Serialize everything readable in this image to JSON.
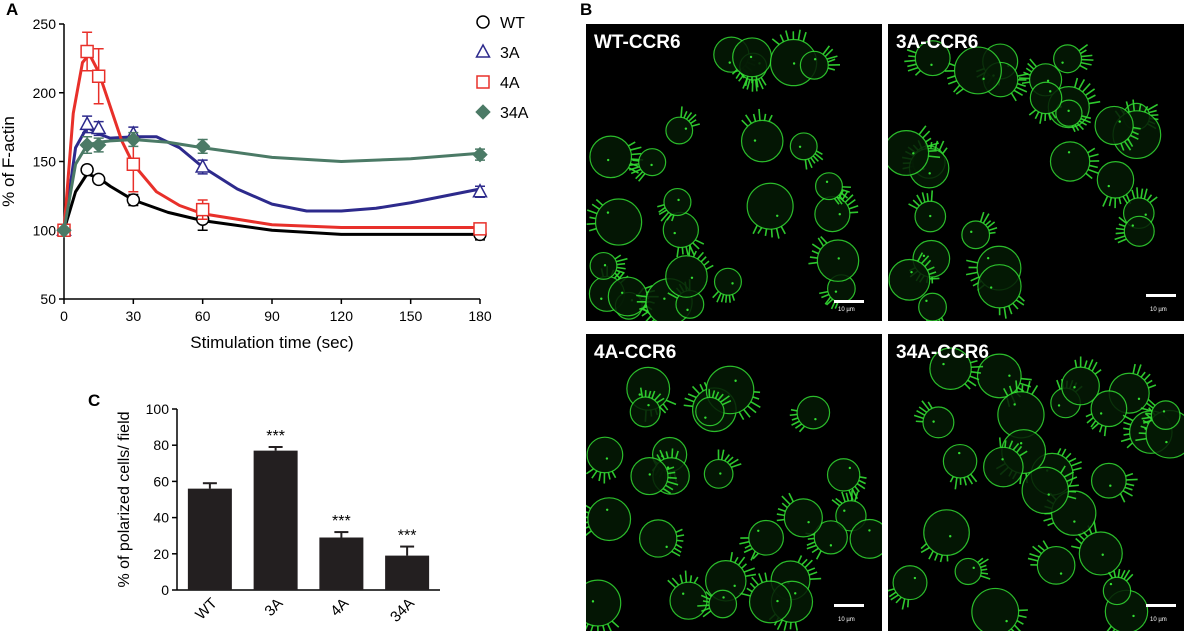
{
  "panels": {
    "a": "A",
    "b": "B",
    "c": "C"
  },
  "chart_data": [
    {
      "type": "line",
      "xlabel": "Stimulation time (sec)",
      "ylabel": "% of F-actin",
      "xlim": [
        0,
        180
      ],
      "ylim": [
        50,
        250
      ],
      "xticks": [
        0,
        30,
        60,
        90,
        120,
        150,
        180
      ],
      "yticks": [
        50,
        100,
        150,
        200,
        250
      ],
      "legend_position": "top-right",
      "series": [
        {
          "name": "WT",
          "marker": "circle",
          "color": "#000000",
          "x": [
            0,
            10,
            15,
            30,
            60,
            180
          ],
          "y": [
            100,
            144,
            137,
            122,
            108,
            97
          ],
          "err": [
            0,
            3,
            3,
            4,
            8,
            4
          ],
          "curve_x": [
            0,
            5,
            10,
            15,
            20,
            30,
            45,
            60,
            90,
            120,
            150,
            180
          ],
          "curve_y": [
            100,
            128,
            141,
            138,
            132,
            122,
            113,
            107,
            100,
            97,
            97,
            97
          ]
        },
        {
          "name": "3A",
          "marker": "triangle",
          "color": "#2d2a8c",
          "x": [
            0,
            10,
            15,
            30,
            60,
            180
          ],
          "y": [
            100,
            177,
            174,
            170,
            146,
            128
          ],
          "err": [
            0,
            6,
            5,
            5,
            5,
            4
          ],
          "curve_x": [
            0,
            5,
            10,
            15,
            20,
            30,
            40,
            50,
            60,
            75,
            90,
            105,
            120,
            135,
            150,
            165,
            180
          ],
          "curve_y": [
            100,
            160,
            175,
            170,
            167,
            168,
            168,
            160,
            146,
            130,
            119,
            114,
            114,
            116,
            120,
            125,
            130
          ]
        },
        {
          "name": "4A",
          "marker": "square",
          "color": "#e8302a",
          "x": [
            0,
            10,
            15,
            30,
            60,
            180
          ],
          "y": [
            100,
            230,
            212,
            148,
            115,
            101
          ],
          "err": [
            0,
            14,
            20,
            20,
            7,
            4
          ],
          "curve_x": [
            0,
            4,
            8,
            11,
            15,
            20,
            25,
            30,
            40,
            50,
            60,
            90,
            120,
            150,
            180
          ],
          "curve_y": [
            100,
            185,
            222,
            228,
            215,
            190,
            165,
            148,
            128,
            118,
            112,
            104,
            102,
            102,
            102
          ]
        },
        {
          "name": "34A",
          "marker": "diamond",
          "color": "#4b7a66",
          "x": [
            0,
            10,
            15,
            30,
            60,
            180
          ],
          "y": [
            100,
            162,
            162,
            166,
            161,
            155
          ],
          "err": [
            0,
            6,
            5,
            5,
            5,
            4
          ],
          "curve_x": [
            0,
            5,
            10,
            15,
            20,
            30,
            45,
            60,
            90,
            120,
            150,
            180
          ],
          "curve_y": [
            100,
            148,
            162,
            164,
            165,
            166,
            164,
            160,
            153,
            150,
            152,
            156
          ]
        }
      ]
    },
    {
      "type": "bar",
      "ylabel": "% of polarized cells/ field",
      "categories": [
        "WT",
        "3A",
        "4A",
        "34A"
      ],
      "values": [
        56,
        77,
        29,
        19
      ],
      "err": [
        3,
        2,
        3,
        5
      ],
      "annotations": [
        "",
        "***",
        "***",
        "***"
      ],
      "ylim": [
        0,
        100
      ],
      "yticks": [
        0,
        20,
        40,
        60,
        80,
        100
      ],
      "bar_color": "#231f20"
    }
  ],
  "micrographs": [
    {
      "label": "WT-CCR6",
      "scale_label": "10 µm"
    },
    {
      "label": "3A-CCR6",
      "scale_label": "10 µm"
    },
    {
      "label": "4A-CCR6",
      "scale_label": "10 µm"
    },
    {
      "label": "34A-CCR6",
      "scale_label": "10 µm"
    }
  ],
  "colors": {
    "fluorescence": "#33dd33",
    "background": "#000000"
  }
}
